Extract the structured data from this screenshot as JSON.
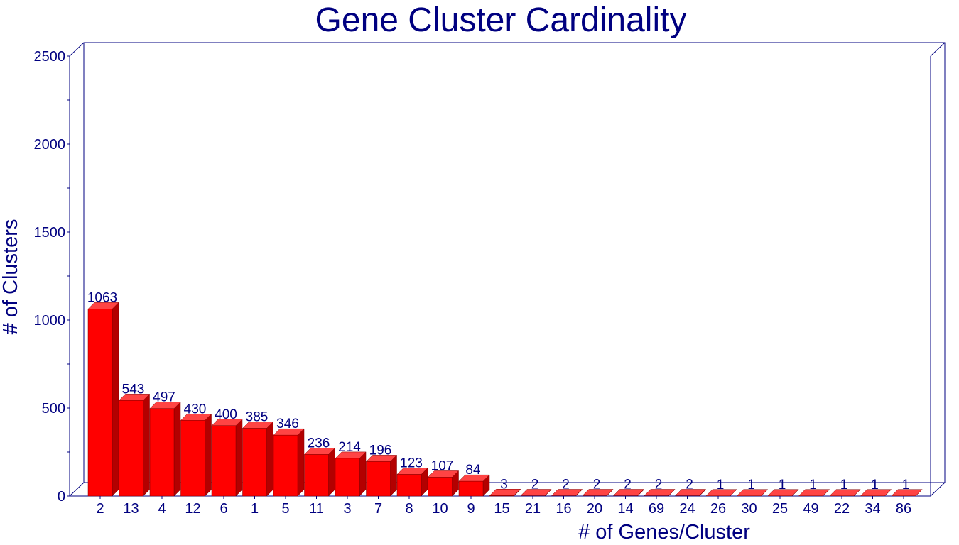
{
  "chart_data": {
    "type": "bar",
    "title": "Gene Cluster Cardinality",
    "xlabel": "# of Genes/Cluster",
    "ylabel": "# of Clusters",
    "ylim": [
      0,
      2500
    ],
    "yticks": [
      0,
      500,
      1000,
      1500,
      2000,
      2500
    ],
    "categories": [
      "2",
      "13",
      "4",
      "12",
      "6",
      "1",
      "5",
      "11",
      "3",
      "7",
      "8",
      "10",
      "9",
      "15",
      "21",
      "16",
      "20",
      "14",
      "69",
      "24",
      "26",
      "30",
      "25",
      "49",
      "22",
      "34",
      "86"
    ],
    "values": [
      1063,
      543,
      497,
      430,
      400,
      385,
      346,
      236,
      214,
      196,
      123,
      107,
      84,
      3,
      2,
      2,
      2,
      2,
      2,
      2,
      1,
      1,
      1,
      1,
      1,
      1,
      1
    ],
    "data_labels": true,
    "grid": false,
    "legend": "none",
    "style": "3d"
  },
  "colors": {
    "text": "#000080",
    "axis": "#000080",
    "bar_front": "#ff0000",
    "bar_top": "#ff4444",
    "bar_side": "#b30000"
  }
}
